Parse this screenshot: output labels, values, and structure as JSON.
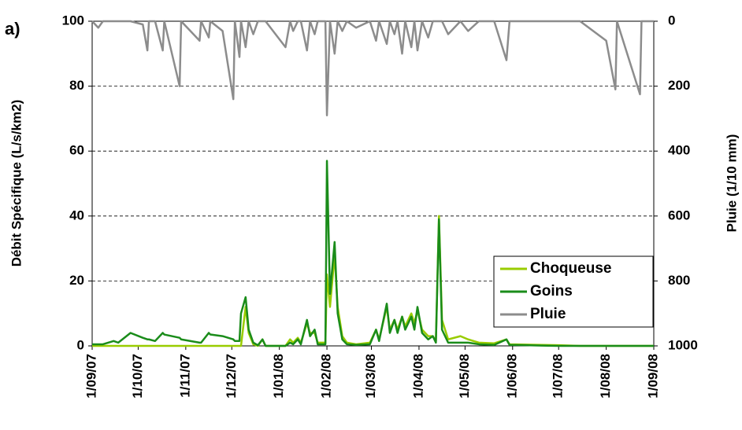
{
  "chart_data": {
    "type": "line",
    "annotation": "a)",
    "y_label": "Débit Spécifique (L/s/km2)",
    "y2_label": "Pluie (1/10 mm)",
    "x": [
      "2007-09-01",
      "2007-09-05",
      "2007-09-08",
      "2007-09-15",
      "2007-09-18",
      "2007-09-26",
      "2007-10-04",
      "2007-10-07",
      "2007-10-08",
      "2007-10-12",
      "2007-10-17",
      "2007-10-18",
      "2007-10-28",
      "2007-10-29",
      "2007-11-10",
      "2007-11-11",
      "2007-11-16",
      "2007-11-17",
      "2007-11-25",
      "2007-12-02",
      "2007-12-03",
      "2007-12-06",
      "2007-12-07",
      "2007-12-10",
      "2007-12-12",
      "2007-12-15",
      "2007-12-18",
      "2007-12-21",
      "2007-12-23",
      "2008-01-05",
      "2008-01-08",
      "2008-01-10",
      "2008-01-13",
      "2008-01-15",
      "2008-01-19",
      "2008-01-21",
      "2008-01-24",
      "2008-01-26",
      "2008-01-31",
      "2008-02-01",
      "2008-02-03",
      "2008-02-06",
      "2008-02-08",
      "2008-02-11",
      "2008-02-14",
      "2008-02-20",
      "2008-02-29",
      "2008-03-04",
      "2008-03-06",
      "2008-03-11",
      "2008-03-13",
      "2008-03-16",
      "2008-03-18",
      "2008-03-21",
      "2008-03-23",
      "2008-03-27",
      "2008-03-29",
      "2008-03-31",
      "2008-04-03",
      "2008-04-07",
      "2008-04-10",
      "2008-04-12",
      "2008-04-14",
      "2008-04-16",
      "2008-04-20",
      "2008-04-28",
      "2008-05-03",
      "2008-05-10",
      "2008-05-20",
      "2008-05-28",
      "2008-05-30",
      "2008-06-10",
      "2008-06-20",
      "2008-07-01",
      "2008-07-15",
      "2008-08-01",
      "2008-08-07",
      "2008-08-08",
      "2008-08-23",
      "2008-08-24",
      "2008-09-01"
    ],
    "series": [
      {
        "name": "Choqueuse",
        "color": "#99cc00",
        "values": [
          0,
          0,
          0,
          0,
          0,
          0,
          0,
          0,
          0,
          0,
          0,
          0,
          0,
          0,
          0,
          0,
          0,
          0,
          0,
          0,
          0,
          0,
          0,
          12,
          4,
          0.5,
          0,
          2,
          0,
          0,
          2,
          1,
          2.5,
          1,
          7,
          4,
          4,
          1,
          1,
          22,
          12,
          28,
          12,
          3,
          1,
          0.5,
          1,
          5,
          2,
          12,
          5,
          8,
          5,
          9,
          6,
          10,
          7,
          11,
          5,
          3,
          3,
          1.5,
          40,
          8,
          2,
          3,
          2,
          1,
          0.8,
          2,
          0.5,
          0.4,
          0.3,
          0.2,
          0,
          0,
          0,
          0,
          0,
          0,
          0
        ]
      },
      {
        "name": "Goins",
        "color": "#1a8c1a",
        "values": [
          0.5,
          0.5,
          0.5,
          1.5,
          1,
          4,
          2.5,
          2,
          2,
          1.5,
          4,
          3.5,
          2.5,
          2,
          1,
          1,
          4,
          3.5,
          3,
          2,
          1.5,
          1.5,
          10,
          15,
          5,
          1,
          0.2,
          2,
          0,
          0,
          1,
          0.5,
          2,
          0.5,
          8,
          3,
          5,
          0.5,
          0.5,
          57,
          16,
          32,
          10,
          2,
          0.5,
          0.3,
          0.5,
          5,
          1.5,
          13,
          4,
          8,
          4,
          9,
          5,
          9,
          5,
          12,
          4,
          2,
          3,
          1,
          39,
          5,
          1,
          1,
          1,
          0.5,
          0.3,
          2,
          0.3,
          0.2,
          0.1,
          0,
          0,
          0,
          0,
          0,
          0,
          0,
          0
        ]
      },
      {
        "name": "Pluie",
        "color": "#8c8c8c",
        "axis": "y2",
        "values": [
          0,
          20,
          0,
          0,
          0,
          0,
          10,
          90,
          0,
          0,
          90,
          0,
          200,
          0,
          60,
          0,
          50,
          0,
          30,
          240,
          0,
          110,
          0,
          80,
          0,
          40,
          0,
          0,
          0,
          80,
          0,
          30,
          0,
          0,
          90,
          0,
          40,
          0,
          0,
          290,
          0,
          100,
          0,
          30,
          0,
          20,
          0,
          60,
          0,
          70,
          0,
          40,
          0,
          100,
          0,
          80,
          0,
          90,
          0,
          50,
          0,
          0,
          0,
          0,
          40,
          0,
          30,
          0,
          0,
          120,
          0,
          0,
          0,
          0,
          0,
          60,
          210,
          0,
          225,
          0,
          0
        ]
      }
    ],
    "xlim": [
      "2007-09-01",
      "2008-09-01"
    ],
    "xticks": [
      {
        "value": "2007-09-01",
        "label": "1/09/07"
      },
      {
        "value": "2007-10-01",
        "label": "1/10/07"
      },
      {
        "value": "2007-11-01",
        "label": "1/11/07"
      },
      {
        "value": "2007-12-01",
        "label": "1/12/07"
      },
      {
        "value": "2008-01-01",
        "label": "1/01/08"
      },
      {
        "value": "2008-02-01",
        "label": "1/02/08"
      },
      {
        "value": "2008-03-01",
        "label": "1/03/08"
      },
      {
        "value": "2008-04-01",
        "label": "1/04/08"
      },
      {
        "value": "2008-05-01",
        "label": "1/05/08"
      },
      {
        "value": "2008-06-01",
        "label": "1/06/08"
      },
      {
        "value": "2008-07-01",
        "label": "1/07/08"
      },
      {
        "value": "2008-08-01",
        "label": "1/08/08"
      },
      {
        "value": "2008-09-01",
        "label": "1/09/08"
      }
    ],
    "ylim": [
      0,
      100
    ],
    "yticks": [
      0,
      20,
      40,
      60,
      80,
      100
    ],
    "y2lim": [
      1000,
      0
    ],
    "y2ticks": [
      0,
      200,
      400,
      600,
      800,
      1000
    ],
    "grid": true,
    "legend": "lower right"
  }
}
